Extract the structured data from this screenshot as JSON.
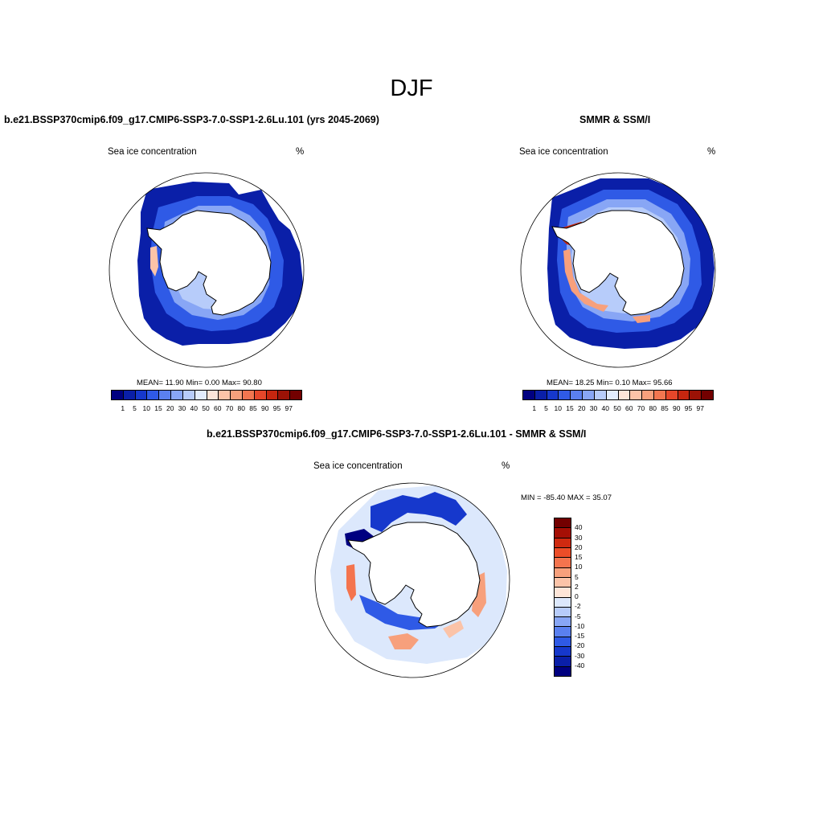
{
  "figure": {
    "title": "DJF",
    "panels": [
      {
        "id": "model",
        "title": "b.e21.BSSP370cmip6.f09_g17.CMIP6-SSP3-7.0-SSP1-2.6Lu.101 (yrs 2045-2069)",
        "left_label": "Sea ice concentration",
        "right_label": "%",
        "stats": "MEAN=  11.90  Min=   0.00  Max=  90.80"
      },
      {
        "id": "obs",
        "title": "SMMR & SSM/I",
        "left_label": "Sea ice concentration",
        "right_label": "%",
        "stats": "MEAN=  18.25  Min=   0.10  Max=  95.66"
      },
      {
        "id": "diff",
        "title": "b.e21.BSSP370cmip6.f09_g17.CMIP6-SSP3-7.0-SSP1-2.6Lu.101 - SMMR & SSM/I",
        "left_label": "Sea ice concentration",
        "right_label": "%",
        "stats": "MIN = -85.40 MAX =  35.07"
      }
    ],
    "conc_colorbar": {
      "levels": [
        "1",
        "5",
        "10",
        "15",
        "20",
        "30",
        "40",
        "50",
        "60",
        "70",
        "80",
        "85",
        "90",
        "95",
        "97"
      ],
      "colors": [
        "#000080",
        "#0a1fa8",
        "#1638cc",
        "#2f5ae6",
        "#5a80f0",
        "#88a6f5",
        "#b7ccfa",
        "#e2ecfd",
        "#fde5d8",
        "#fbc3a8",
        "#f7a07c",
        "#f27650",
        "#e6472a",
        "#c6260f",
        "#9b1206",
        "#730000"
      ]
    },
    "diff_colorbar": {
      "levels": [
        "40",
        "30",
        "20",
        "15",
        "10",
        "5",
        "2",
        "0",
        "-2",
        "-5",
        "-10",
        "-15",
        "-20",
        "-30",
        "-40"
      ],
      "colors": [
        "#730000",
        "#a50f05",
        "#cf2a10",
        "#ec4d28",
        "#f4744e",
        "#f7a07c",
        "#fbc3a8",
        "#fde5d8",
        "#dce8fc",
        "#b7ccfa",
        "#88a6f5",
        "#5a80f0",
        "#2f5ae6",
        "#1638cc",
        "#0a1fa8",
        "#000080"
      ]
    }
  }
}
